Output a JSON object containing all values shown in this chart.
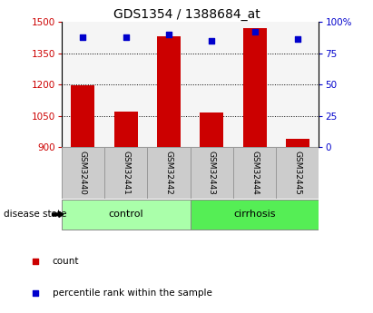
{
  "title": "GDS1354 / 1388684_at",
  "samples": [
    "GSM32440",
    "GSM32441",
    "GSM32442",
    "GSM32443",
    "GSM32444",
    "GSM32445"
  ],
  "bar_values": [
    1195,
    1070,
    1430,
    1065,
    1470,
    940
  ],
  "percentile_values": [
    88,
    88,
    90,
    85,
    92,
    86
  ],
  "bar_color": "#cc0000",
  "percentile_color": "#0000cc",
  "ylim_left": [
    900,
    1500
  ],
  "ylim_right": [
    0,
    100
  ],
  "yticks_left": [
    900,
    1050,
    1200,
    1350,
    1500
  ],
  "yticks_right": [
    0,
    25,
    50,
    75,
    100
  ],
  "grid_values": [
    1050,
    1200,
    1350
  ],
  "groups": [
    {
      "label": "control",
      "indices": [
        0,
        1,
        2
      ],
      "color": "#aaffaa"
    },
    {
      "label": "cirrhosis",
      "indices": [
        3,
        4,
        5
      ],
      "color": "#55ee55"
    }
  ],
  "group_label": "disease state",
  "legend_items": [
    {
      "label": "count",
      "color": "#cc0000"
    },
    {
      "label": "percentile rank within the sample",
      "color": "#0000cc"
    }
  ],
  "bar_bottom": 900,
  "sample_box_color": "#cccccc",
  "sample_box_edge": "#999999"
}
